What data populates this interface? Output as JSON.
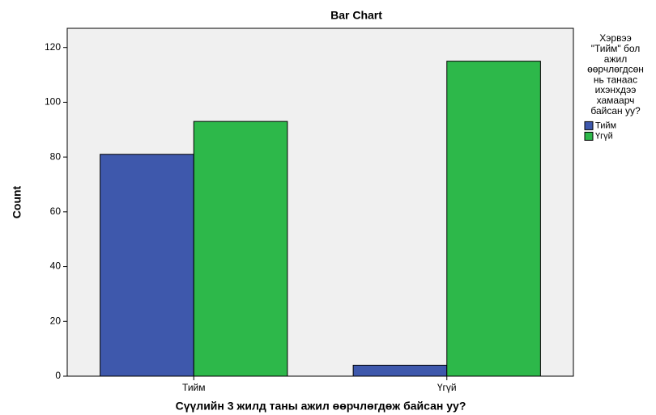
{
  "chart_data": {
    "type": "bar",
    "title": "Bar Chart",
    "x_label": "Сүүлийн 3 жилд таны ажил өөрчлөгдөж байсан уу?",
    "y_label": "Count",
    "categories": [
      "Тийм",
      "Үгүй"
    ],
    "legend_title": [
      "Хэрвээ",
      "\"Тийм\" бол",
      "ажил",
      "өөрчлөгдсөн",
      "нь танаас",
      "ихэнхдээ",
      "хамаарч",
      "байсан уу?"
    ],
    "series": [
      {
        "name": "Тийм",
        "color": "#3e58ac",
        "values": [
          81,
          4
        ]
      },
      {
        "name": "Үгүй",
        "color": "#2db84a",
        "values": [
          93,
          115
        ]
      }
    ],
    "ylim": [
      0,
      127
    ],
    "yticks": [
      0,
      20,
      40,
      60,
      80,
      100,
      120
    ],
    "grid": false,
    "legend": "right"
  }
}
